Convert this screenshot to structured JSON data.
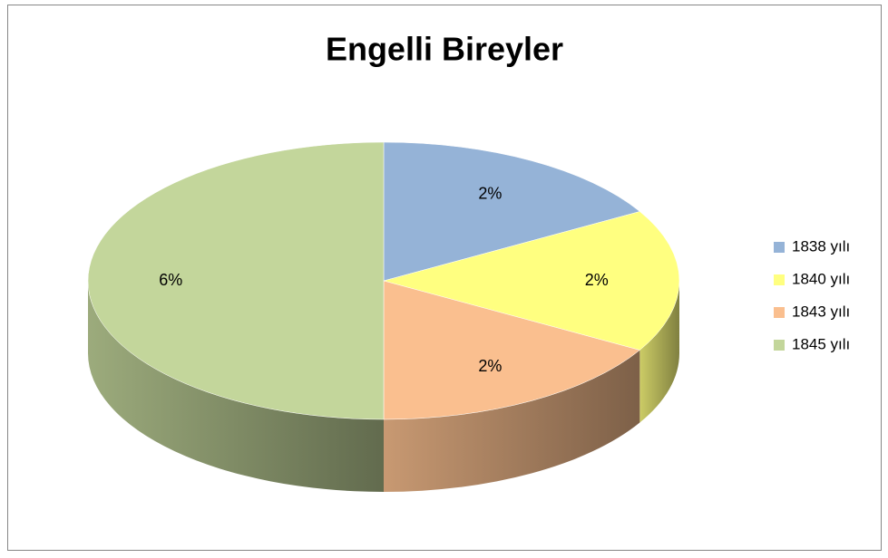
{
  "chart_data": {
    "type": "pie",
    "title": "Engelli Bireyler",
    "categories": [
      "1838 yılı",
      "1840 yılı",
      "1843 yılı",
      "1845 yılı"
    ],
    "values": [
      2,
      2,
      2,
      6
    ],
    "value_labels": [
      "2%",
      "2%",
      "2%",
      "6%"
    ],
    "colors": [
      "#95b3d7",
      "#ffff80",
      "#fabf8f",
      "#c3d69b"
    ],
    "legend": "right"
  }
}
